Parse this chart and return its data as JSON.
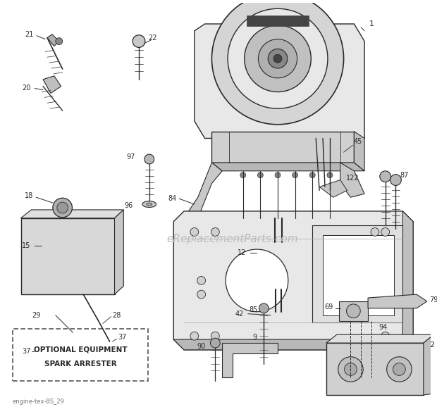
{
  "bg_color": "#ffffff",
  "watermark": "eReplacementParts.com",
  "footer": "engine-tex-BS_29",
  "box_text_line1": "OPTIONAL EQUIPMENT",
  "box_text_line2": "SPARK ARRESTER",
  "line_color": "#2a2a2a",
  "gray_fill": "#c8c8c8",
  "light_fill": "#e8e8e8",
  "mid_fill": "#aaaaaa",
  "dark_fill": "#444444"
}
